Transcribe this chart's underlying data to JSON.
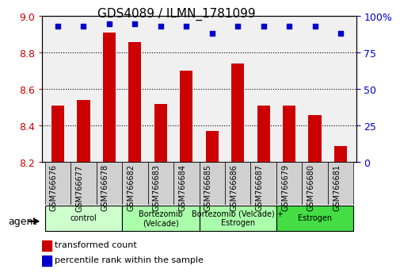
{
  "title": "GDS4089 / ILMN_1781099",
  "samples": [
    "GSM766676",
    "GSM766677",
    "GSM766678",
    "GSM766682",
    "GSM766683",
    "GSM766684",
    "GSM766685",
    "GSM766686",
    "GSM766687",
    "GSM766679",
    "GSM766680",
    "GSM766681"
  ],
  "bar_values": [
    8.51,
    8.54,
    8.91,
    8.86,
    8.52,
    8.7,
    8.37,
    8.74,
    8.51,
    8.51,
    8.46,
    8.29
  ],
  "dot_values": [
    93,
    93,
    95,
    95,
    93,
    93,
    88,
    93,
    93,
    93,
    93,
    88
  ],
  "bar_color": "#cc0000",
  "dot_color": "#0000cc",
  "ylim_left": [
    8.2,
    9.0
  ],
  "ylim_right": [
    0,
    100
  ],
  "yticks_left": [
    8.2,
    8.4,
    8.6,
    8.8,
    9.0
  ],
  "yticks_right": [
    0,
    25,
    50,
    75,
    100
  ],
  "yticklabels_right": [
    "0",
    "25",
    "50",
    "75",
    "100%"
  ],
  "groups": [
    {
      "label": "control",
      "start": 0,
      "end": 3,
      "color": "#ccffcc"
    },
    {
      "label": "Bortezomib\n(Velcade)",
      "start": 3,
      "end": 6,
      "color": "#aaffaa"
    },
    {
      "label": "Bortezomib (Velcade) +\nEstrogen",
      "start": 6,
      "end": 9,
      "color": "#aaffaa"
    },
    {
      "label": "Estrogen",
      "start": 9,
      "end": 12,
      "color": "#44dd44"
    }
  ],
  "agent_label": "agent",
  "legend_bar_label": "transformed count",
  "legend_dot_label": "percentile rank within the sample",
  "background_color": "#ffffff",
  "plot_bg_color": "#f0f0f0"
}
